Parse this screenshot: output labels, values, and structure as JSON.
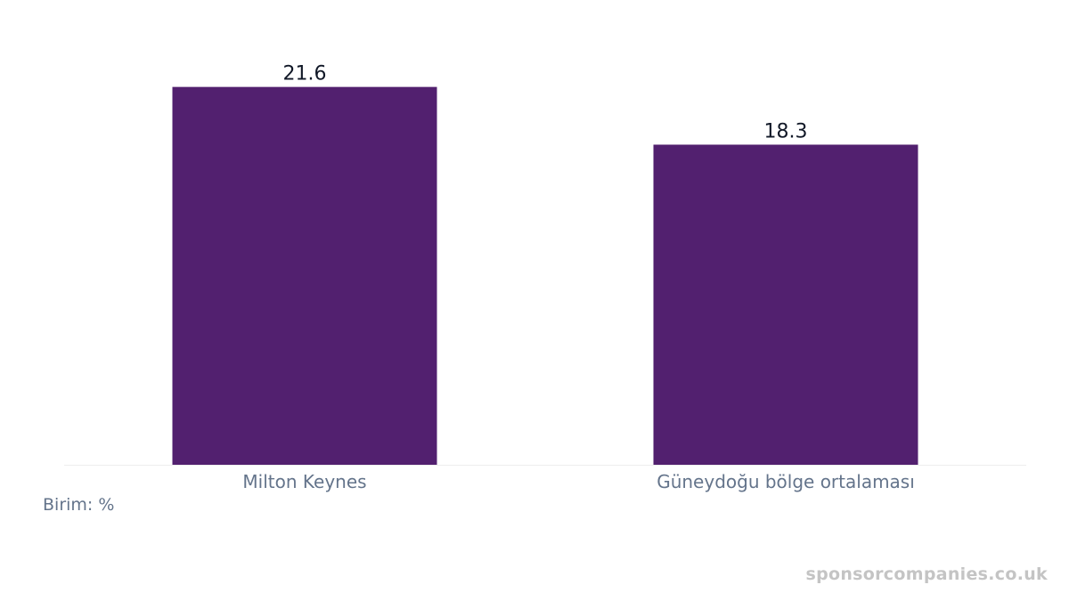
{
  "chart_data": {
    "type": "bar",
    "categories": [
      "Milton Keynes",
      "Güneydoğu bölge ortalaması"
    ],
    "values": [
      21.6,
      18.3
    ],
    "data_labels": [
      "21.6",
      "18.3"
    ],
    "ylim": [
      0,
      24.33
    ],
    "unit_note": "Birim: %",
    "bar_color": "#52206f",
    "grid": false,
    "legend": "none"
  },
  "watermark": "sponsorcompanies.co.uk",
  "colors": {
    "label_text": "#111827",
    "tick_text": "#64748b",
    "baseline": "#eeeeee"
  }
}
